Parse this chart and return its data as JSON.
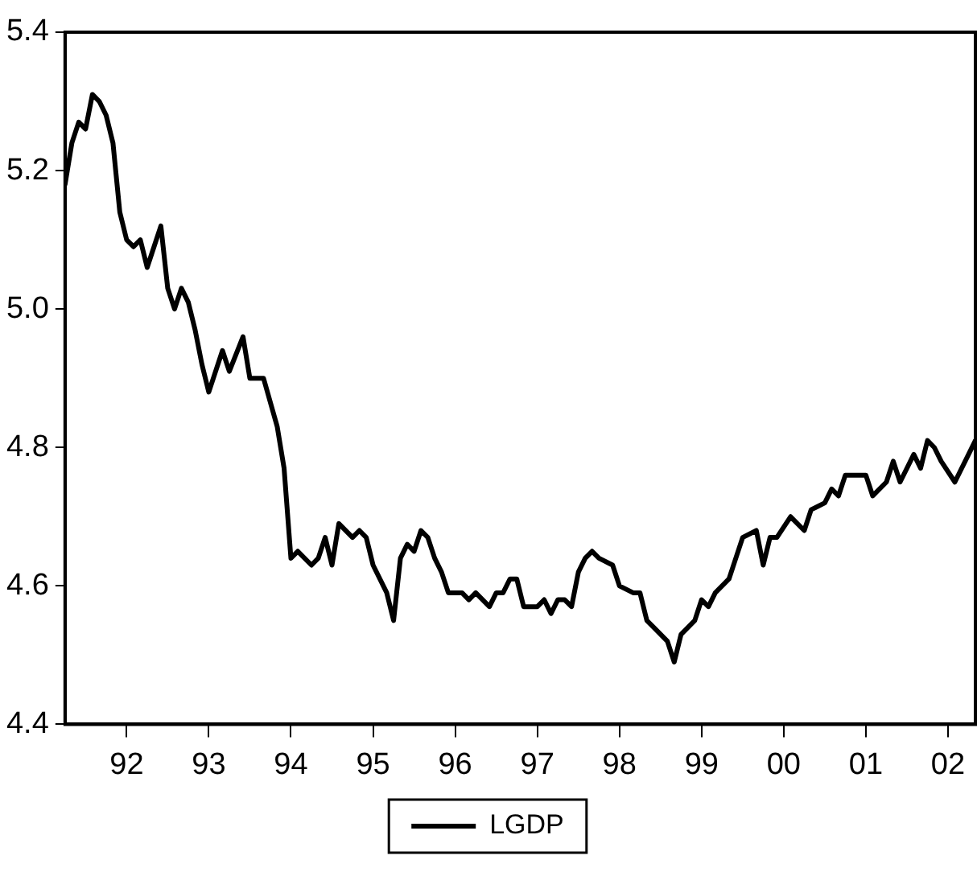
{
  "chart_data": {
    "type": "line",
    "x": [
      "1991-04",
      "1991-05",
      "1991-06",
      "1991-07",
      "1991-08",
      "1991-09",
      "1991-10",
      "1991-11",
      "1991-12",
      "1992-01",
      "1992-02",
      "1992-03",
      "1992-04",
      "1992-05",
      "1992-06",
      "1992-07",
      "1992-08",
      "1992-09",
      "1992-10",
      "1992-11",
      "1992-12",
      "1993-01",
      "1993-03",
      "1993-04",
      "1993-06",
      "1993-07",
      "1993-08",
      "1993-09",
      "1993-11",
      "1993-12",
      "1994-01",
      "1994-02",
      "1994-04",
      "1994-05",
      "1994-06",
      "1994-07",
      "1994-08",
      "1994-10",
      "1994-11",
      "1994-12",
      "1995-01",
      "1995-03",
      "1995-04",
      "1995-05",
      "1995-06",
      "1995-07",
      "1995-08",
      "1995-09",
      "1995-10",
      "1995-11",
      "1995-12",
      "1996-02",
      "1996-03",
      "1996-04",
      "1996-06",
      "1996-07",
      "1996-08",
      "1996-09",
      "1996-10",
      "1996-11",
      "1996-12",
      "1997-01",
      "1997-02",
      "1997-03",
      "1997-04",
      "1997-05",
      "1997-06",
      "1997-07",
      "1997-08",
      "1997-09",
      "1997-10",
      "1997-12",
      "1998-01",
      "1998-03",
      "1998-04",
      "1998-05",
      "1998-06",
      "1998-08",
      "1998-09",
      "1998-10",
      "1998-12",
      "1999-01",
      "1999-02",
      "1999-03",
      "1999-05",
      "1999-06",
      "1999-07",
      "1999-09",
      "1999-10",
      "1999-11",
      "1999-12",
      "2000-02",
      "2000-04",
      "2000-05",
      "2000-07",
      "2000-08",
      "2000-09",
      "2000-10",
      "2000-12",
      "2001-01",
      "2001-02",
      "2001-04",
      "2001-05",
      "2001-06",
      "2001-08",
      "2001-09",
      "2001-10",
      "2001-11",
      "2001-12",
      "2002-02",
      "2002-05"
    ],
    "series": [
      {
        "name": "LGDP",
        "color": "#000000",
        "values": [
          5.18,
          5.24,
          5.27,
          5.26,
          5.31,
          5.3,
          5.28,
          5.24,
          5.14,
          5.1,
          5.09,
          5.1,
          5.06,
          5.09,
          5.12,
          5.03,
          5.0,
          5.03,
          5.01,
          4.97,
          4.92,
          4.88,
          4.94,
          4.91,
          4.96,
          4.9,
          4.9,
          4.9,
          4.83,
          4.77,
          4.64,
          4.65,
          4.63,
          4.64,
          4.67,
          4.63,
          4.69,
          4.67,
          4.68,
          4.67,
          4.63,
          4.59,
          4.55,
          4.64,
          4.66,
          4.65,
          4.68,
          4.67,
          4.64,
          4.62,
          4.59,
          4.59,
          4.58,
          4.59,
          4.57,
          4.59,
          4.59,
          4.61,
          4.61,
          4.57,
          4.57,
          4.57,
          4.58,
          4.56,
          4.58,
          4.58,
          4.57,
          4.62,
          4.64,
          4.65,
          4.64,
          4.63,
          4.6,
          4.59,
          4.59,
          4.55,
          4.54,
          4.52,
          4.49,
          4.53,
          4.55,
          4.58,
          4.57,
          4.59,
          4.61,
          4.64,
          4.67,
          4.68,
          4.63,
          4.67,
          4.67,
          4.7,
          4.68,
          4.71,
          4.72,
          4.74,
          4.73,
          4.76,
          4.76,
          4.76,
          4.73,
          4.75,
          4.78,
          4.75,
          4.79,
          4.77,
          4.81,
          4.8,
          4.78,
          4.75,
          4.81
        ]
      }
    ],
    "xlim": [
      "1991-04",
      "2002-05"
    ],
    "xticks": [
      {
        "value": "1992",
        "label": "92"
      },
      {
        "value": "1993",
        "label": "93"
      },
      {
        "value": "1994",
        "label": "94"
      },
      {
        "value": "1995",
        "label": "95"
      },
      {
        "value": "1996",
        "label": "96"
      },
      {
        "value": "1997",
        "label": "97"
      },
      {
        "value": "1998",
        "label": "98"
      },
      {
        "value": "1999",
        "label": "99"
      },
      {
        "value": "2000",
        "label": "00"
      },
      {
        "value": "2001",
        "label": "01"
      },
      {
        "value": "2002",
        "label": "02"
      }
    ],
    "ylim": [
      4.4,
      5.4
    ],
    "yticks": [
      {
        "value": 4.4,
        "label": "4.4"
      },
      {
        "value": 4.6,
        "label": "4.6"
      },
      {
        "value": 4.8,
        "label": "4.8"
      },
      {
        "value": 5.0,
        "label": "5.0"
      },
      {
        "value": 5.2,
        "label": "5.2"
      },
      {
        "value": 5.4,
        "label": "5.4"
      }
    ],
    "grid": false,
    "legend": "bottom",
    "marker": "none",
    "line_style": "solid"
  }
}
